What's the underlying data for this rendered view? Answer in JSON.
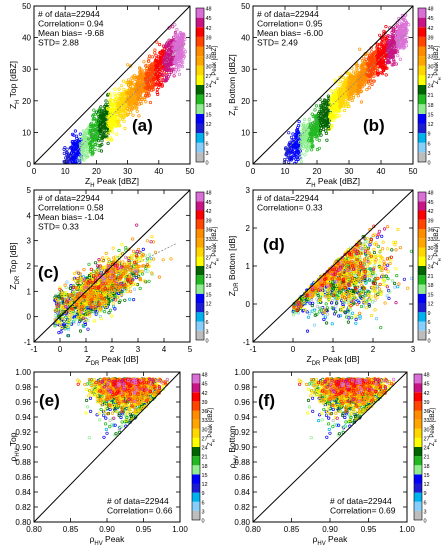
{
  "colorbar": {
    "ticks": [
      "0",
      "3",
      "6",
      "9",
      "12",
      "15",
      "18",
      "21",
      "24",
      "27",
      "30",
      "33",
      "36",
      "39",
      "42",
      "45",
      "48"
    ],
    "label_main": "Z",
    "label_sub": "H",
    "label_tail": " Peak [dBZ]",
    "colors": [
      "#bdbdbd",
      "#87cefa",
      "#00b2ee",
      "#1c1cd4",
      "#0000ff",
      "#90ee90",
      "#22b822",
      "#006400",
      "#ffff00",
      "#ffd700",
      "#ffa500",
      "#ff8c00",
      "#ff4500",
      "#ff0000",
      "#c71585",
      "#da70d6"
    ]
  },
  "panels": [
    {
      "label": "(a)",
      "stats": [
        "# of data=22944",
        "Correlation= 0.94",
        "Mean bias= -9.68",
        "STD= 2.88"
      ],
      "xlabel": {
        "main": "Z",
        "sub": "H",
        "tail": " Peak [dBZ]"
      },
      "ylabel": {
        "main": "Z",
        "sub": "H",
        "tail": " Top [dBZ]"
      }
    },
    {
      "label": "(b)",
      "stats": [
        "# of data=22944",
        "Correlation= 0.95",
        "Mean bias= -6.00",
        "STD= 2.49"
      ],
      "xlabel": {
        "main": "Z",
        "sub": "H",
        "tail": " Peak [dBZ]"
      },
      "ylabel": {
        "main": "Z",
        "sub": "H",
        "tail": " Bottom [dBZ]"
      }
    },
    {
      "label": "(c)",
      "stats": [
        "# of data=22944",
        "Correlation= 0.58",
        "Mean bias= -1.04",
        "STD= 0.33"
      ],
      "xlabel": {
        "main": "Z",
        "sub": "DR",
        "tail": " Peak [dB]"
      },
      "ylabel": {
        "main": "Z",
        "sub": "DR",
        "tail": " Top [dB]"
      }
    },
    {
      "label": "(d)",
      "stats": [
        "# of data=22944",
        "Correlation= 0.33"
      ],
      "xlabel": {
        "main": "Z",
        "sub": "DR",
        "tail": " Peak [dB]"
      },
      "ylabel": {
        "main": "Z",
        "sub": "DR",
        "tail": " Bottom [dB]"
      }
    },
    {
      "label": "(e)",
      "stats": [
        "# of data=22944",
        "Correlation= 0.66"
      ],
      "xlabel": {
        "main": "ρ",
        "sub": "HV",
        "tail": " Peak"
      },
      "ylabel": {
        "main": "ρ",
        "sub": "HV",
        "tail": " Top"
      }
    },
    {
      "label": "(f)",
      "stats": [
        "# of data=22944",
        "Correlation= 0.69"
      ],
      "xlabel": {
        "main": "ρ",
        "sub": "HV",
        "tail": " Peak"
      },
      "ylabel": {
        "main": "ρ",
        "sub": "HV",
        "tail": " Bottom"
      }
    }
  ],
  "chart_data": [
    {
      "type": "scatter",
      "panel": "(a)",
      "xlim": [
        0,
        50
      ],
      "ylim": [
        0,
        50
      ],
      "xticks": [
        "0",
        "10",
        "20",
        "30",
        "40",
        "50"
      ],
      "yticks": [
        "0",
        "10",
        "20",
        "30",
        "40",
        "50"
      ],
      "reference_line": "1:1",
      "fit_line": [
        [
          10,
          0.6
        ],
        [
          48,
          38.2
        ]
      ],
      "cloud": {
        "x_range": [
          9.8,
          48
        ],
        "spread": 11,
        "n_points": 22944
      }
    },
    {
      "type": "scatter",
      "panel": "(b)",
      "xlim": [
        0,
        50
      ],
      "ylim": [
        0,
        50
      ],
      "xticks": [
        "0",
        "10",
        "20",
        "30",
        "40",
        "50"
      ],
      "yticks": [
        "0",
        "10",
        "20",
        "30",
        "40",
        "50"
      ],
      "reference_line": "1:1",
      "fit_line": [
        [
          10,
          4.2
        ],
        [
          48,
          41.5
        ]
      ],
      "cloud": {
        "x_range": [
          9.8,
          48
        ],
        "spread": 10,
        "n_points": 22944
      }
    },
    {
      "type": "scatter",
      "panel": "(c)",
      "xlim": [
        -1,
        5
      ],
      "ylim": [
        -1,
        5
      ],
      "xticks": [
        "-1",
        "0",
        "1",
        "2",
        "3",
        "4",
        "5"
      ],
      "yticks": [
        "-1",
        "0",
        "1",
        "2",
        "3",
        "4",
        "5"
      ],
      "reference_line": "1:1",
      "fit_line": [
        [
          -0.2,
          0.5
        ],
        [
          4.5,
          2.9
        ]
      ],
      "cloud": {
        "center": [
          1.4,
          1.0
        ],
        "n_points": 22944
      }
    },
    {
      "type": "scatter",
      "panel": "(d)",
      "xlim": [
        -1,
        3
      ],
      "ylim": [
        -1,
        3
      ],
      "xticks": [
        "-1",
        "0",
        "1",
        "2",
        "3"
      ],
      "yticks": [
        "-1",
        "0",
        "1",
        "2",
        "3"
      ],
      "reference_line": "1:1",
      "fit_line": null,
      "cloud": {
        "center": [
          1.3,
          1.0
        ],
        "n_points": 22944
      }
    },
    {
      "type": "scatter",
      "panel": "(e)",
      "xlim": [
        0.8,
        1.0
      ],
      "ylim": [
        0.8,
        1.0
      ],
      "xticks": [
        "0.80",
        "0.85",
        "0.90",
        "0.95",
        "1.00"
      ],
      "yticks": [
        "0.80",
        "0.82",
        "0.84",
        "0.86",
        "0.88",
        "0.90",
        "0.92",
        "0.94",
        "0.96",
        "0.98",
        "1.00"
      ],
      "reference_line": "1:1",
      "fit_line": null,
      "cloud": {
        "center": [
          0.93,
          0.975
        ],
        "n_points": 22944
      }
    },
    {
      "type": "scatter",
      "panel": "(f)",
      "xlim": [
        0.8,
        1.0
      ],
      "ylim": [
        0.8,
        1.0
      ],
      "xticks": [
        "0.80",
        "0.85",
        "0.90",
        "0.95",
        "1.00"
      ],
      "yticks": [
        "0.80",
        "0.82",
        "0.84",
        "0.86",
        "0.88",
        "0.90",
        "0.92",
        "0.94",
        "0.96",
        "0.98",
        "1.00"
      ],
      "reference_line": "1:1",
      "fit_line": null,
      "cloud": {
        "center": [
          0.93,
          0.975
        ],
        "n_points": 22944
      }
    }
  ]
}
